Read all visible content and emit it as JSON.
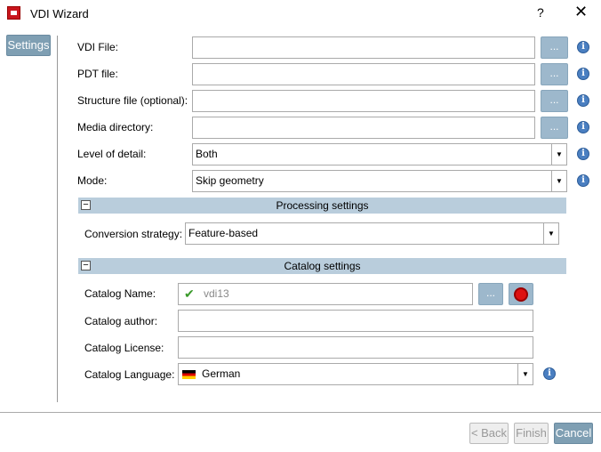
{
  "window": {
    "title": "VDI Wizard",
    "help": "?",
    "close": "✕"
  },
  "sidebar": {
    "tab": "Settings"
  },
  "fields": [
    {
      "label": "VDI File:",
      "value": ""
    },
    {
      "label": "PDT file:",
      "value": ""
    },
    {
      "label": "Structure file (optional):",
      "value": ""
    },
    {
      "label": "Media directory:",
      "value": ""
    }
  ],
  "browse": "...",
  "info": "i",
  "level": {
    "label": "Level of detail:",
    "value": "Both"
  },
  "mode": {
    "label": "Mode:",
    "value": "Skip geometry"
  },
  "processing": {
    "title": "Processing settings",
    "toggle": "−",
    "strategy_label": "Conversion strategy:",
    "strategy": "Feature-based"
  },
  "catalog": {
    "title": "Catalog settings",
    "toggle": "−",
    "name_label": "Catalog Name:",
    "name": "vdi13",
    "author_label": "Catalog author:",
    "author": "",
    "license_label": "Catalog License:",
    "license": "",
    "language_label": "Catalog Language:",
    "language": "German"
  },
  "footer": {
    "back": "< Back",
    "finish": "Finish",
    "cancel": "Cancel"
  }
}
